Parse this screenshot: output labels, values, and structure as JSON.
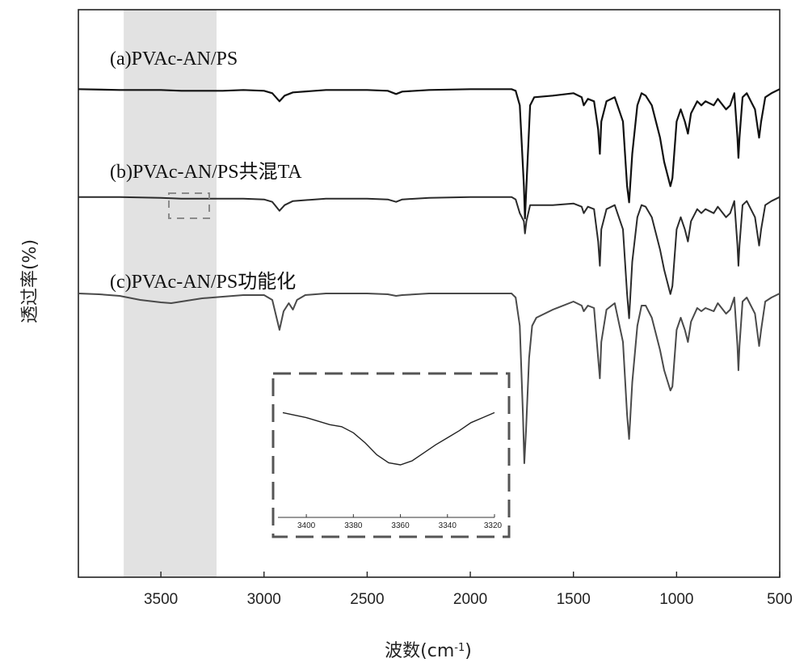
{
  "chart_data": {
    "type": "line",
    "title": "",
    "xlabel": "波数(cm",
    "xlabel_sup": "-1",
    "xlabel_close": ")",
    "ylabel": "透过率(%)",
    "xlim": [
      3900,
      500
    ],
    "x_reversed": true,
    "x_ticks": [
      "3500",
      "3000",
      "2500",
      "2000",
      "1500",
      "1000",
      "500"
    ],
    "x_tick_values": [
      3500,
      3000,
      2500,
      2000,
      1500,
      1000,
      500
    ],
    "highlight_band": [
      3680,
      3230
    ],
    "colors": {
      "a": "#111111",
      "b": "#2a2a2a",
      "c": "#4a4a4a",
      "band": "#e2e2e2",
      "inset_frame": "#555555"
    },
    "series": [
      {
        "name": "(a)PVAc-AN/PS",
        "baseline_pct": 14,
        "points": [
          [
            3900,
            0
          ],
          [
            3700,
            -1
          ],
          [
            3500,
            -1
          ],
          [
            3400,
            -2
          ],
          [
            3200,
            -2
          ],
          [
            3100,
            -1
          ],
          [
            3000,
            -2
          ],
          [
            2960,
            -5
          ],
          [
            2925,
            -15
          ],
          [
            2900,
            -8
          ],
          [
            2860,
            -4
          ],
          [
            2700,
            -1
          ],
          [
            2500,
            -1
          ],
          [
            2400,
            -2
          ],
          [
            2360,
            -6
          ],
          [
            2330,
            -3
          ],
          [
            2200,
            -1
          ],
          [
            2000,
            0
          ],
          [
            1800,
            0
          ],
          [
            1780,
            -2
          ],
          [
            1760,
            -20
          ],
          [
            1740,
            -120
          ],
          [
            1735,
            -160
          ],
          [
            1728,
            -120
          ],
          [
            1710,
            -20
          ],
          [
            1690,
            -10
          ],
          [
            1600,
            -8
          ],
          [
            1500,
            -5
          ],
          [
            1460,
            -10
          ],
          [
            1450,
            -20
          ],
          [
            1430,
            -12
          ],
          [
            1400,
            -15
          ],
          [
            1380,
            -50
          ],
          [
            1372,
            -80
          ],
          [
            1365,
            -40
          ],
          [
            1340,
            -15
          ],
          [
            1300,
            -10
          ],
          [
            1260,
            -40
          ],
          [
            1240,
            -120
          ],
          [
            1230,
            -140
          ],
          [
            1215,
            -80
          ],
          [
            1190,
            -20
          ],
          [
            1170,
            -5
          ],
          [
            1150,
            -8
          ],
          [
            1120,
            -20
          ],
          [
            1100,
            -40
          ],
          [
            1080,
            -60
          ],
          [
            1060,
            -90
          ],
          [
            1030,
            -120
          ],
          [
            1020,
            -110
          ],
          [
            1000,
            -40
          ],
          [
            980,
            -25
          ],
          [
            960,
            -40
          ],
          [
            945,
            -55
          ],
          [
            930,
            -30
          ],
          [
            900,
            -15
          ],
          [
            880,
            -20
          ],
          [
            860,
            -15
          ],
          [
            820,
            -20
          ],
          [
            800,
            -12
          ],
          [
            760,
            -25
          ],
          [
            740,
            -20
          ],
          [
            720,
            -5
          ],
          [
            705,
            -60
          ],
          [
            700,
            -85
          ],
          [
            695,
            -60
          ],
          [
            680,
            -10
          ],
          [
            660,
            -5
          ],
          [
            640,
            -15
          ],
          [
            620,
            -25
          ],
          [
            600,
            -60
          ],
          [
            590,
            -40
          ],
          [
            570,
            -10
          ],
          [
            540,
            -5
          ],
          [
            500,
            0
          ]
        ]
      },
      {
        "name": "(b)PVAc-AN/PS共混TA",
        "baseline_pct": 33,
        "points": [
          [
            3900,
            0
          ],
          [
            3700,
            0
          ],
          [
            3500,
            -1
          ],
          [
            3400,
            -2
          ],
          [
            3200,
            -2
          ],
          [
            3100,
            -2
          ],
          [
            3000,
            -3
          ],
          [
            2960,
            -6
          ],
          [
            2925,
            -17
          ],
          [
            2900,
            -10
          ],
          [
            2860,
            -5
          ],
          [
            2700,
            -2
          ],
          [
            2500,
            -2
          ],
          [
            2400,
            -3
          ],
          [
            2360,
            -6
          ],
          [
            2330,
            -3
          ],
          [
            2200,
            -1
          ],
          [
            2000,
            0
          ],
          [
            1800,
            0
          ],
          [
            1780,
            -3
          ],
          [
            1760,
            -20
          ],
          [
            1740,
            -30
          ],
          [
            1735,
            -45
          ],
          [
            1728,
            -30
          ],
          [
            1710,
            -10
          ],
          [
            1690,
            -10
          ],
          [
            1600,
            -10
          ],
          [
            1500,
            -8
          ],
          [
            1460,
            -12
          ],
          [
            1450,
            -20
          ],
          [
            1430,
            -12
          ],
          [
            1400,
            -15
          ],
          [
            1380,
            -55
          ],
          [
            1372,
            -85
          ],
          [
            1365,
            -40
          ],
          [
            1340,
            -15
          ],
          [
            1300,
            -10
          ],
          [
            1260,
            -40
          ],
          [
            1240,
            -120
          ],
          [
            1230,
            -150
          ],
          [
            1215,
            -80
          ],
          [
            1190,
            -25
          ],
          [
            1170,
            -10
          ],
          [
            1150,
            -12
          ],
          [
            1120,
            -25
          ],
          [
            1100,
            -45
          ],
          [
            1080,
            -65
          ],
          [
            1060,
            -90
          ],
          [
            1030,
            -120
          ],
          [
            1020,
            -110
          ],
          [
            1000,
            -40
          ],
          [
            980,
            -25
          ],
          [
            960,
            -40
          ],
          [
            945,
            -55
          ],
          [
            930,
            -30
          ],
          [
            900,
            -15
          ],
          [
            880,
            -20
          ],
          [
            860,
            -15
          ],
          [
            820,
            -20
          ],
          [
            800,
            -12
          ],
          [
            760,
            -25
          ],
          [
            740,
            -20
          ],
          [
            720,
            -5
          ],
          [
            705,
            -60
          ],
          [
            700,
            -85
          ],
          [
            695,
            -60
          ],
          [
            680,
            -10
          ],
          [
            660,
            -5
          ],
          [
            640,
            -15
          ],
          [
            620,
            -25
          ],
          [
            600,
            -60
          ],
          [
            590,
            -40
          ],
          [
            570,
            -10
          ],
          [
            540,
            -5
          ],
          [
            500,
            0
          ]
        ]
      },
      {
        "name": "(c)PVAc-AN/PS功能化",
        "baseline_pct": 50,
        "points": [
          [
            3900,
            0
          ],
          [
            3800,
            -1
          ],
          [
            3700,
            -3
          ],
          [
            3600,
            -8
          ],
          [
            3500,
            -11
          ],
          [
            3450,
            -12
          ],
          [
            3400,
            -10
          ],
          [
            3300,
            -6
          ],
          [
            3200,
            -4
          ],
          [
            3100,
            -2
          ],
          [
            3000,
            -2
          ],
          [
            2960,
            -8
          ],
          [
            2925,
            -45
          ],
          [
            2905,
            -22
          ],
          [
            2880,
            -12
          ],
          [
            2860,
            -20
          ],
          [
            2840,
            -8
          ],
          [
            2800,
            -2
          ],
          [
            2700,
            0
          ],
          [
            2500,
            0
          ],
          [
            2400,
            -1
          ],
          [
            2360,
            -3
          ],
          [
            2330,
            -2
          ],
          [
            2200,
            0
          ],
          [
            2000,
            0
          ],
          [
            1800,
            0
          ],
          [
            1780,
            -5
          ],
          [
            1760,
            -40
          ],
          [
            1745,
            -150
          ],
          [
            1738,
            -210
          ],
          [
            1730,
            -170
          ],
          [
            1715,
            -80
          ],
          [
            1700,
            -40
          ],
          [
            1680,
            -30
          ],
          [
            1600,
            -20
          ],
          [
            1500,
            -10
          ],
          [
            1460,
            -15
          ],
          [
            1450,
            -22
          ],
          [
            1430,
            -15
          ],
          [
            1400,
            -18
          ],
          [
            1380,
            -80
          ],
          [
            1372,
            -105
          ],
          [
            1365,
            -60
          ],
          [
            1340,
            -20
          ],
          [
            1300,
            -12
          ],
          [
            1260,
            -60
          ],
          [
            1240,
            -150
          ],
          [
            1230,
            -180
          ],
          [
            1215,
            -110
          ],
          [
            1190,
            -40
          ],
          [
            1170,
            -15
          ],
          [
            1150,
            -15
          ],
          [
            1120,
            -30
          ],
          [
            1100,
            -50
          ],
          [
            1080,
            -70
          ],
          [
            1060,
            -95
          ],
          [
            1030,
            -120
          ],
          [
            1020,
            -115
          ],
          [
            1000,
            -45
          ],
          [
            980,
            -30
          ],
          [
            960,
            -45
          ],
          [
            945,
            -60
          ],
          [
            930,
            -35
          ],
          [
            900,
            -18
          ],
          [
            880,
            -22
          ],
          [
            860,
            -18
          ],
          [
            820,
            -22
          ],
          [
            800,
            -12
          ],
          [
            760,
            -25
          ],
          [
            740,
            -20
          ],
          [
            720,
            -5
          ],
          [
            705,
            -65
          ],
          [
            700,
            -95
          ],
          [
            695,
            -65
          ],
          [
            680,
            -10
          ],
          [
            660,
            -5
          ],
          [
            640,
            -15
          ],
          [
            620,
            -25
          ],
          [
            600,
            -65
          ],
          [
            590,
            -45
          ],
          [
            570,
            -10
          ],
          [
            540,
            -5
          ],
          [
            500,
            0
          ]
        ]
      }
    ],
    "inset": {
      "xlim": [
        3410,
        3320
      ],
      "x_ticks": [
        "3400",
        "3380",
        "3360",
        "3340",
        "3320"
      ],
      "x_tick_values": [
        3400,
        3380,
        3360,
        3340,
        3320
      ],
      "points": [
        [
          3410,
          0.1
        ],
        [
          3400,
          0.15
        ],
        [
          3390,
          0.22
        ],
        [
          3385,
          0.24
        ],
        [
          3380,
          0.3
        ],
        [
          3375,
          0.4
        ],
        [
          3370,
          0.52
        ],
        [
          3365,
          0.6
        ],
        [
          3360,
          0.62
        ],
        [
          3355,
          0.58
        ],
        [
          3350,
          0.5
        ],
        [
          3345,
          0.42
        ],
        [
          3340,
          0.35
        ],
        [
          3335,
          0.28
        ],
        [
          3330,
          0.2
        ],
        [
          3325,
          0.15
        ],
        [
          3320,
          0.1
        ]
      ]
    }
  }
}
